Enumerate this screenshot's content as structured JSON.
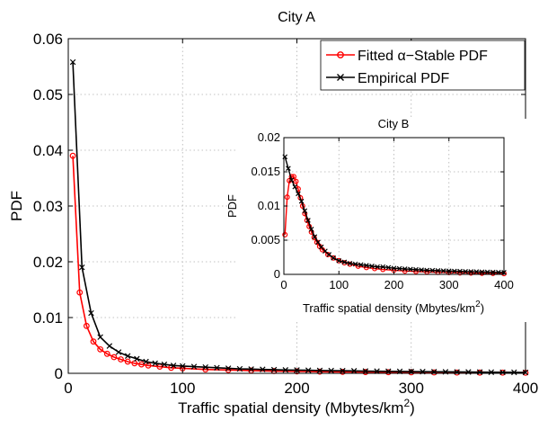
{
  "chart_data": [
    {
      "type": "line",
      "title": "City A",
      "xlabel": "Traffic spatial density (Mbytes/km",
      "xlabel_sup": "2",
      "xlabel_end": ")",
      "ylabel": "PDF",
      "xlim": [
        0,
        400
      ],
      "ylim": [
        0,
        0.06
      ],
      "xticks": [
        "0",
        "100",
        "200",
        "300",
        "400"
      ],
      "yticks": [
        "0",
        "0.01",
        "0.02",
        "0.03",
        "0.04",
        "0.05",
        "0.06"
      ],
      "grid": true,
      "legend_position": "top-right",
      "series": [
        {
          "name": "Fitted α−Stable PDF",
          "color": "#ff0000",
          "marker": "circle",
          "x": [
            4,
            10,
            16,
            22,
            28,
            34,
            40,
            46,
            52,
            58,
            64,
            70,
            80,
            90,
            100,
            120,
            140,
            160,
            180,
            200,
            220,
            240,
            260,
            280,
            300,
            320,
            340,
            360,
            380,
            400
          ],
          "y": [
            0.039,
            0.0145,
            0.0085,
            0.0057,
            0.0043,
            0.0035,
            0.0029,
            0.0025,
            0.0021,
            0.0018,
            0.0016,
            0.0014,
            0.0012,
            0.001,
            0.0009,
            0.0007,
            0.0006,
            0.0005,
            0.0004,
            0.00035,
            0.0003,
            0.00026,
            0.00023,
            0.0002,
            0.00018,
            0.00016,
            0.00014,
            0.00013,
            0.00012,
            0.0001
          ]
        },
        {
          "name": "Empirical PDF",
          "color": "#000000",
          "marker": "x",
          "x": [
            4,
            12,
            20,
            28,
            36,
            44,
            52,
            60,
            68,
            76,
            84,
            92,
            100,
            110,
            120,
            130,
            140,
            150,
            160,
            170,
            180,
            190,
            200,
            210,
            220,
            230,
            240,
            250,
            260,
            270,
            280,
            290,
            300,
            310,
            320,
            330,
            340,
            350,
            360,
            370,
            380,
            390,
            400
          ],
          "y": [
            0.0558,
            0.019,
            0.0108,
            0.0065,
            0.0049,
            0.0038,
            0.0031,
            0.0026,
            0.0021,
            0.0018,
            0.0016,
            0.0014,
            0.0013,
            0.0012,
            0.0011,
            0.001,
            0.0009,
            0.0008,
            0.00075,
            0.0007,
            0.00065,
            0.0006,
            0.00058,
            0.00055,
            0.0005,
            0.00048,
            0.00046,
            0.00044,
            0.0004,
            0.00038,
            0.00036,
            0.00034,
            0.00032,
            0.0003,
            0.00028,
            0.00027,
            0.00025,
            0.00024,
            0.00022,
            0.0002,
            0.00019,
            0.00018,
            0.00016
          ]
        }
      ]
    },
    {
      "type": "line",
      "title": "City B",
      "xlabel": "Traffic spatial density (Mbytes/km",
      "xlabel_sup": "2",
      "xlabel_end": ")",
      "ylabel": "PDF",
      "xlim": [
        0,
        400
      ],
      "ylim": [
        0,
        0.02
      ],
      "xticks": [
        "0",
        "100",
        "200",
        "300",
        "400"
      ],
      "yticks": [
        "0",
        "0.005",
        "0.01",
        "0.015",
        "0.02"
      ],
      "grid": true,
      "series": [
        {
          "name": "Fitted α−Stable PDF",
          "color": "#ff0000",
          "marker": "circle",
          "x": [
            2,
            6,
            10,
            14,
            18,
            22,
            26,
            30,
            34,
            38,
            42,
            46,
            50,
            55,
            60,
            65,
            70,
            80,
            90,
            100,
            110,
            120,
            135,
            150,
            165,
            180,
            200,
            220,
            240,
            260,
            280,
            300,
            320,
            340,
            360,
            380,
            400
          ],
          "y": [
            0.0058,
            0.0113,
            0.0137,
            0.0143,
            0.0143,
            0.0136,
            0.0125,
            0.0112,
            0.01,
            0.0089,
            0.0079,
            0.007,
            0.0062,
            0.0054,
            0.0047,
            0.0041,
            0.0036,
            0.0029,
            0.0024,
            0.002,
            0.0017,
            0.0015,
            0.0012,
            0.001,
            0.00085,
            0.00072,
            0.0006,
            0.0005,
            0.00042,
            0.00036,
            0.0003,
            0.00026,
            0.00022,
            0.00019,
            0.00016,
            0.00014,
            0.00012
          ]
        },
        {
          "name": "Empirical PDF",
          "color": "#000000",
          "marker": "x",
          "x": [
            2,
            8,
            14,
            20,
            26,
            32,
            38,
            44,
            50,
            56,
            62,
            68,
            75,
            82,
            90,
            100,
            110,
            120,
            130,
            140,
            150,
            160,
            170,
            180,
            190,
            200,
            210,
            220,
            230,
            240,
            250,
            260,
            270,
            280,
            290,
            300,
            310,
            320,
            330,
            340,
            350,
            360,
            370,
            380,
            390,
            400
          ],
          "y": [
            0.0172,
            0.0155,
            0.0138,
            0.0128,
            0.0118,
            0.0107,
            0.0093,
            0.0079,
            0.0066,
            0.0055,
            0.0047,
            0.004,
            0.0034,
            0.0029,
            0.0024,
            0.002,
            0.0018,
            0.0016,
            0.0015,
            0.0014,
            0.0013,
            0.0012,
            0.0011,
            0.0011,
            0.001,
            0.0009,
            0.00085,
            0.0008,
            0.00075,
            0.0007,
            0.00065,
            0.0006,
            0.00058,
            0.00055,
            0.00052,
            0.0005,
            0.00047,
            0.00045,
            0.00042,
            0.0004,
            0.00038,
            0.00036,
            0.00034,
            0.00032,
            0.0003,
            0.00028
          ]
        }
      ]
    }
  ]
}
